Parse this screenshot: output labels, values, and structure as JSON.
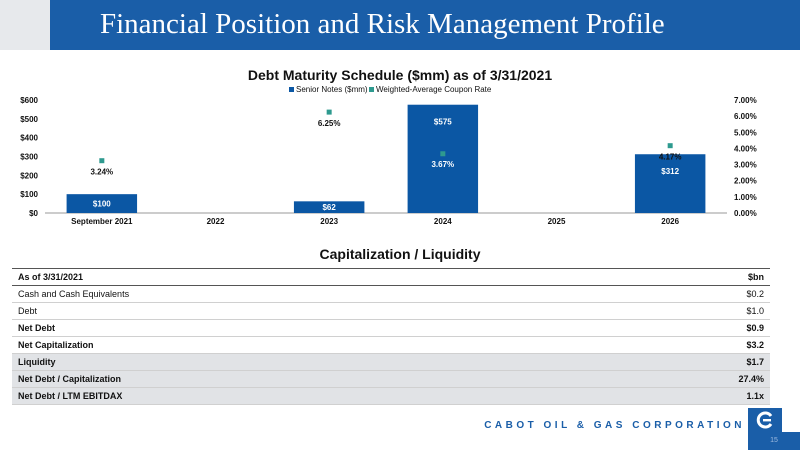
{
  "slide": {
    "title": "Financial Position and Risk Management Profile",
    "company": "CABOT OIL & GAS CORPORATION",
    "page_number": "15",
    "colors": {
      "header_blue": "#1a5ea8",
      "bar_blue": "#0b57a4",
      "marker_teal": "#2e9a8f"
    }
  },
  "chart_data": {
    "type": "bar",
    "title": "Debt Maturity Schedule ($mm) as of 3/31/2021",
    "categories": [
      "September 2021",
      "2022",
      "2023",
      "2024",
      "2025",
      "2026"
    ],
    "series": [
      {
        "name": "Senior Notes ($mm)",
        "type": "bar",
        "axis": "left",
        "values": [
          100,
          null,
          62,
          575,
          null,
          312
        ],
        "labels": [
          "$100",
          "",
          "$62",
          "$575",
          "",
          "$312"
        ]
      },
      {
        "name": "Weighted-Average Coupon Rate",
        "type": "scatter",
        "axis": "right",
        "values": [
          3.24,
          null,
          6.25,
          3.67,
          null,
          4.17
        ],
        "labels": [
          "3.24%",
          "",
          "6.25%",
          "3.67%",
          "",
          "4.17%"
        ]
      }
    ],
    "y_left": {
      "ylim": [
        0,
        600
      ],
      "ticks": [
        "$0",
        "$100",
        "$200",
        "$300",
        "$400",
        "$500",
        "$600"
      ]
    },
    "y_right": {
      "ylim": [
        0,
        7
      ],
      "ticks": [
        "0.00%",
        "1.00%",
        "2.00%",
        "3.00%",
        "4.00%",
        "5.00%",
        "6.00%",
        "7.00%"
      ]
    },
    "legend": "top-center",
    "grid": false
  },
  "capitalization": {
    "title": "Capitalization / Liquidity",
    "header": {
      "label": "As of 3/31/2021",
      "value": "$bn"
    },
    "rows": [
      {
        "label": "Cash and Cash Equivalents",
        "value": "$0.2"
      },
      {
        "label": "Debt",
        "value": "$1.0"
      },
      {
        "label": "Net Debt",
        "value": "$0.9"
      },
      {
        "label": "Net Capitalization",
        "value": "$3.2"
      },
      {
        "label": "Liquidity",
        "value": "$1.7"
      },
      {
        "label": "Net Debt / Capitalization",
        "value": "27.4%"
      },
      {
        "label": "Net Debt / LTM EBITDAX",
        "value": "1.1x"
      }
    ]
  }
}
